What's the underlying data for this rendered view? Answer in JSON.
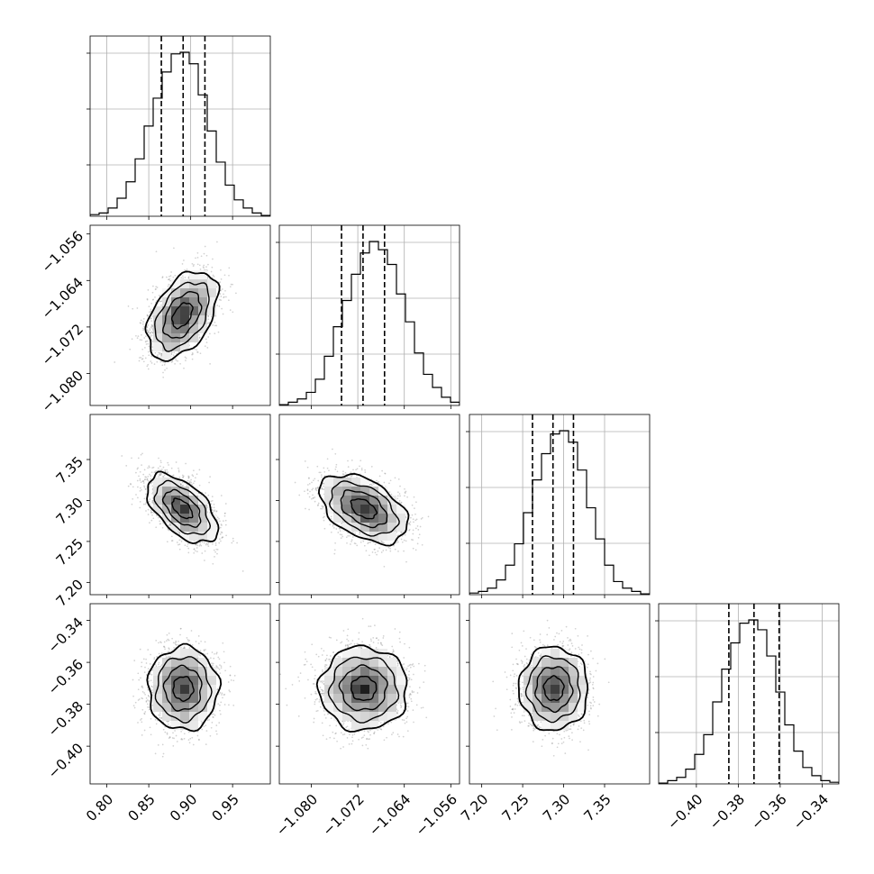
{
  "chart_data": {
    "type": "corner",
    "parameters": 4,
    "colors": {
      "line": "#000000",
      "grid": "#b0b0b0",
      "points": "#9a9a9a"
    },
    "ranges": [
      [
        0.78,
        0.995
      ],
      [
        -1.0855,
        -1.0545
      ],
      [
        7.185,
        7.405
      ],
      [
        -0.418,
        -0.332
      ]
    ],
    "ticks": [
      {
        "values": [
          0.8,
          0.85,
          0.9,
          0.95
        ],
        "labels": [
          "0.80",
          "0.85",
          "0.90",
          "0.95"
        ]
      },
      {
        "values": [
          -1.08,
          -1.072,
          -1.064,
          -1.056
        ],
        "labels": [
          "−1.080",
          "−1.072",
          "−1.064",
          "−1.056"
        ]
      },
      {
        "values": [
          7.2,
          7.25,
          7.3,
          7.35
        ],
        "labels": [
          "7.20",
          "7.25",
          "7.30",
          "7.35"
        ]
      },
      {
        "values": [
          -0.4,
          -0.38,
          -0.36,
          -0.34
        ],
        "labels": [
          "−0.40",
          "−0.38",
          "−0.36",
          "−0.34"
        ]
      }
    ],
    "quantiles": [
      [
        0.865,
        0.891,
        0.917
      ],
      [
        -1.0748,
        -1.0711,
        -1.0674
      ],
      [
        7.262,
        7.287,
        7.312
      ],
      [
        -0.3845,
        -0.3725,
        -0.3605
      ]
    ],
    "histograms": [
      {
        "param": 0,
        "values": [
          0.01,
          0.02,
          0.05,
          0.11,
          0.21,
          0.35,
          0.55,
          0.72,
          0.88,
          0.99,
          1.0,
          0.93,
          0.74,
          0.52,
          0.33,
          0.19,
          0.1,
          0.05,
          0.02,
          0.005
        ]
      },
      {
        "param": 1,
        "values": [
          0.005,
          0.02,
          0.04,
          0.08,
          0.16,
          0.3,
          0.48,
          0.64,
          0.8,
          0.93,
          1.0,
          0.95,
          0.86,
          0.68,
          0.51,
          0.32,
          0.19,
          0.11,
          0.05,
          0.02
        ]
      },
      {
        "param": 2,
        "values": [
          0.01,
          0.02,
          0.04,
          0.09,
          0.18,
          0.31,
          0.5,
          0.7,
          0.86,
          0.98,
          1.0,
          0.93,
          0.76,
          0.53,
          0.34,
          0.18,
          0.08,
          0.04,
          0.02,
          0.005
        ]
      },
      {
        "param": 3,
        "values": [
          0.005,
          0.02,
          0.04,
          0.09,
          0.18,
          0.3,
          0.5,
          0.7,
          0.86,
          0.98,
          1.0,
          0.94,
          0.78,
          0.56,
          0.36,
          0.2,
          0.1,
          0.05,
          0.02,
          0.01
        ]
      }
    ],
    "pairs": [
      {
        "x": 0,
        "y": 1,
        "center": [
          0.89,
          -1.07
        ],
        "sigma": [
          0.02,
          0.0036
        ],
        "correlation": 0.45
      },
      {
        "x": 0,
        "y": 2,
        "center": [
          0.89,
          7.29
        ],
        "sigma": [
          0.02,
          0.02
        ],
        "correlation": -0.55
      },
      {
        "x": 1,
        "y": 2,
        "center": [
          -1.071,
          7.29
        ],
        "sigma": [
          0.0036,
          0.02
        ],
        "correlation": -0.45
      },
      {
        "x": 0,
        "y": 3,
        "center": [
          0.891,
          -0.3725
        ],
        "sigma": [
          0.02,
          0.0095
        ],
        "correlation": 0.0
      },
      {
        "x": 1,
        "y": 3,
        "center": [
          -1.071,
          -0.3725
        ],
        "sigma": [
          0.0036,
          0.0095
        ],
        "correlation": 0.0
      },
      {
        "x": 2,
        "y": 3,
        "center": [
          7.288,
          -0.3725
        ],
        "sigma": [
          0.02,
          0.0095
        ],
        "correlation": 0.0
      }
    ],
    "contour_levels": [
      0.6,
      1.1,
      1.6,
      2.1
    ]
  }
}
